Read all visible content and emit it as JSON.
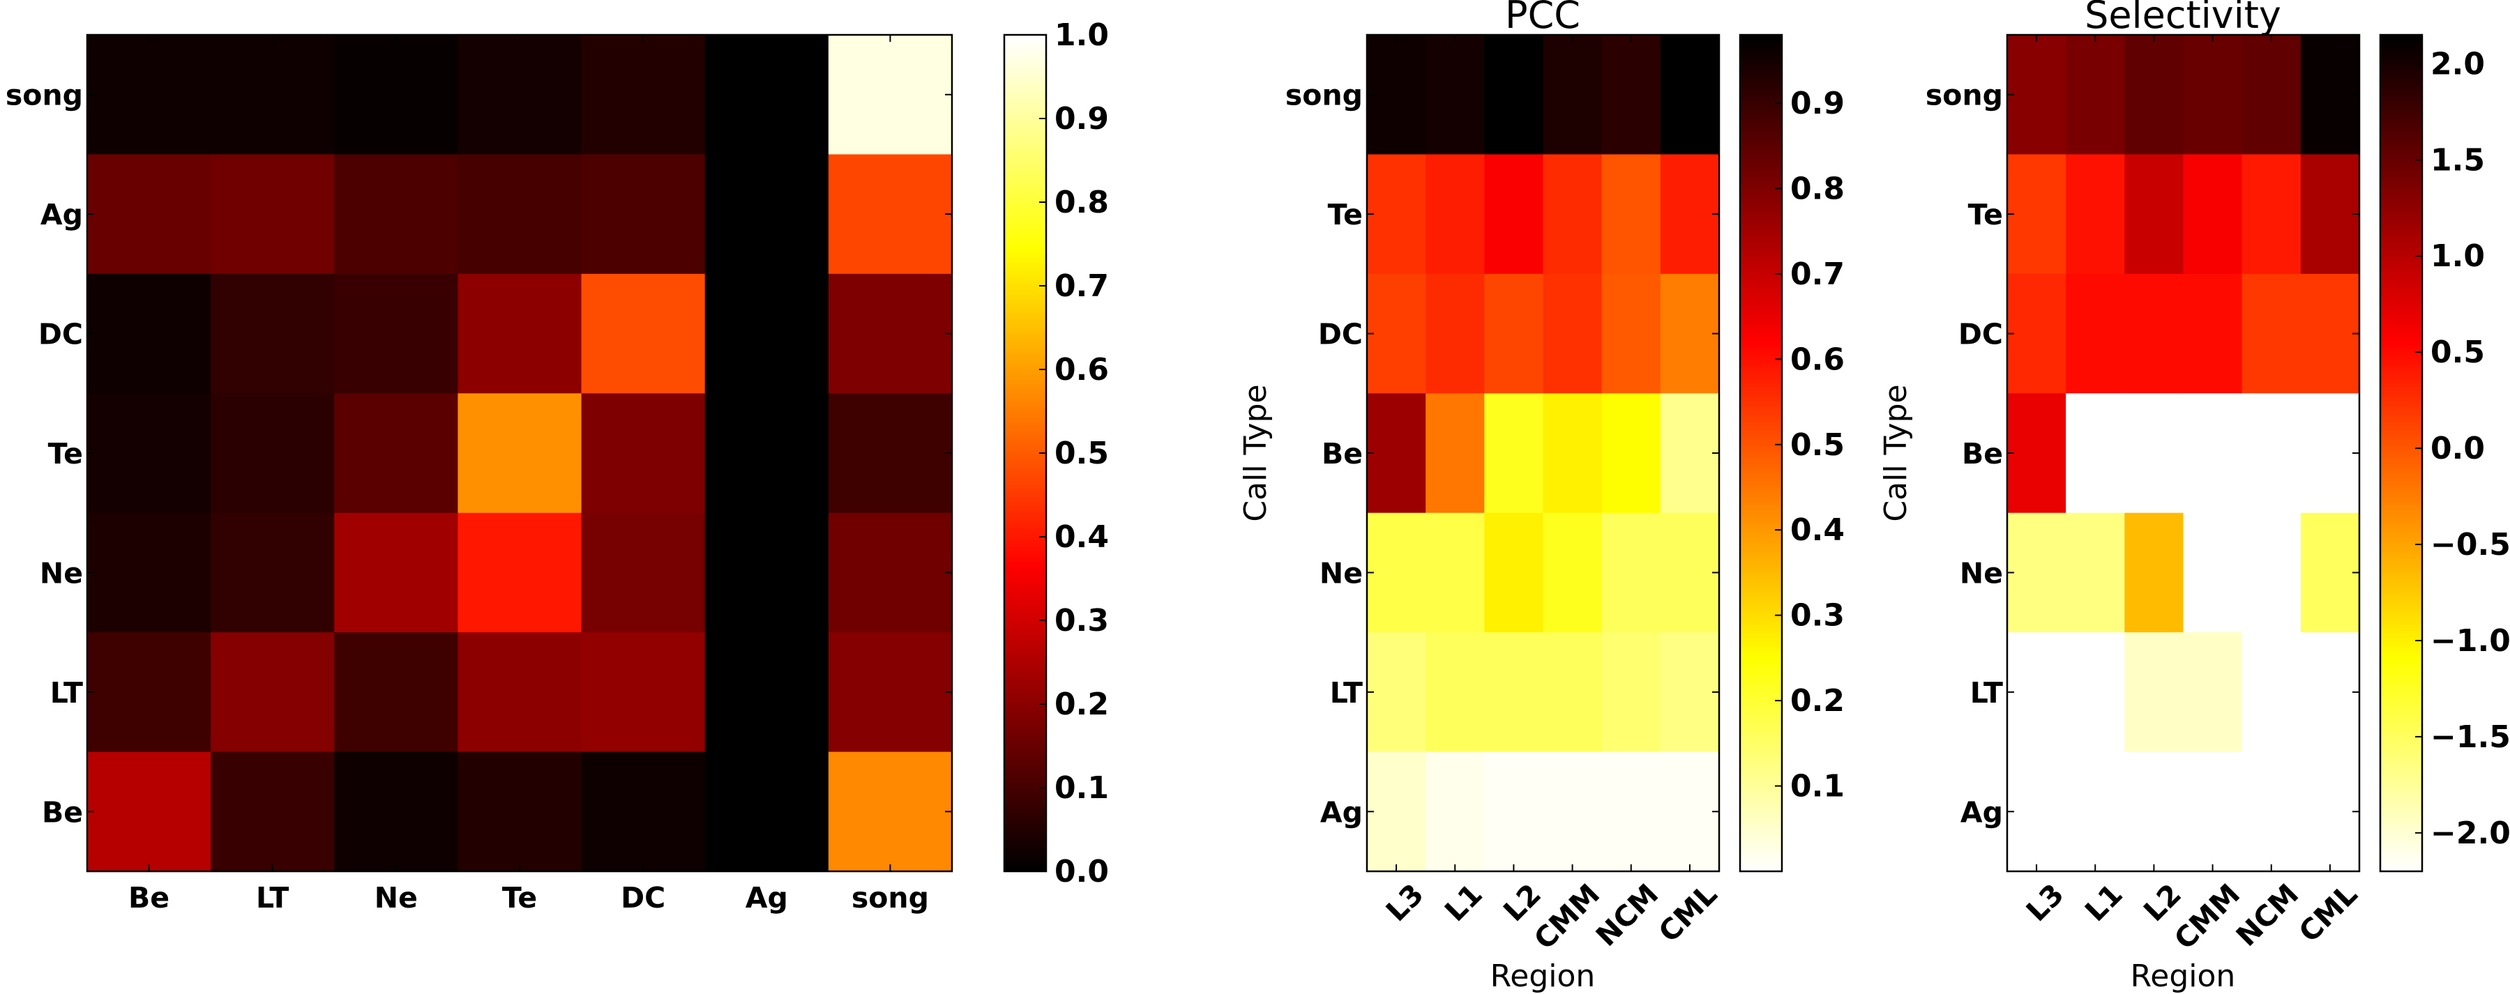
{
  "chart_data": [
    {
      "type": "heatmap",
      "title": "",
      "xlabel": "",
      "ylabel": "",
      "x_categories": [
        "Be",
        "LT",
        "Ne",
        "Te",
        "DC",
        "Ag",
        "song"
      ],
      "y_categories": [
        "song",
        "Ag",
        "DC",
        "Te",
        "Ne",
        "LT",
        "Be"
      ],
      "colormap": "hot",
      "clim": [
        0.0,
        1.0
      ],
      "colorbar_ticks": [
        "0.0",
        "0.1",
        "0.2",
        "0.3",
        "0.4",
        "0.5",
        "0.6",
        "0.7",
        "0.8",
        "0.9",
        "1.0"
      ],
      "values": [
        [
          0.02,
          0.02,
          0.01,
          0.03,
          0.05,
          0.0,
          0.97
        ],
        [
          0.15,
          0.16,
          0.11,
          0.1,
          0.11,
          0.0,
          0.47
        ],
        [
          0.02,
          0.07,
          0.08,
          0.2,
          0.48,
          0.0,
          0.18
        ],
        [
          0.03,
          0.06,
          0.13,
          0.58,
          0.18,
          0.0,
          0.09
        ],
        [
          0.04,
          0.07,
          0.23,
          0.4,
          0.17,
          0.0,
          0.16
        ],
        [
          0.09,
          0.19,
          0.09,
          0.2,
          0.21,
          0.0,
          0.19
        ],
        [
          0.26,
          0.08,
          0.02,
          0.05,
          0.02,
          0.0,
          0.57
        ]
      ]
    },
    {
      "type": "heatmap",
      "title": "PCC",
      "xlabel": "Region",
      "ylabel": "Call Type",
      "x_categories": [
        "L3",
        "L1",
        "L2",
        "CMM",
        "NCM",
        "CML"
      ],
      "y_categories": [
        "song",
        "Te",
        "DC",
        "Be",
        "Ne",
        "LT",
        "Ag"
      ],
      "colormap": "hot_r",
      "clim": [
        0.0,
        0.98
      ],
      "colorbar_ticks": [
        "0.1",
        "0.2",
        "0.3",
        "0.4",
        "0.5",
        "0.6",
        "0.7",
        "0.8",
        "0.9"
      ],
      "values": [
        [
          0.96,
          0.95,
          0.98,
          0.94,
          0.92,
          0.98
        ],
        [
          0.55,
          0.58,
          0.63,
          0.56,
          0.5,
          0.58
        ],
        [
          0.53,
          0.56,
          0.52,
          0.55,
          0.49,
          0.44
        ],
        [
          0.76,
          0.45,
          0.22,
          0.27,
          0.25,
          0.11
        ],
        [
          0.18,
          0.18,
          0.27,
          0.22,
          0.16,
          0.16
        ],
        [
          0.13,
          0.16,
          0.16,
          0.16,
          0.14,
          0.12
        ],
        [
          0.05,
          0.02,
          0.01,
          0.01,
          0.01,
          0.01
        ]
      ]
    },
    {
      "type": "heatmap",
      "title": "Selectivity",
      "xlabel": "Region",
      "ylabel": "Call Type",
      "x_categories": [
        "L3",
        "L1",
        "L2",
        "CMM",
        "NCM",
        "CML"
      ],
      "y_categories": [
        "song",
        "Te",
        "DC",
        "Be",
        "Ne",
        "LT",
        "Ag"
      ],
      "colormap": "hot_r",
      "clim": [
        -2.2,
        2.15
      ],
      "colorbar_ticks": [
        "−2.0",
        "−1.5",
        "−1.0",
        "−0.5",
        "0.0",
        "0.5",
        "1.0",
        "1.5",
        "2.0"
      ],
      "values": [
        [
          1.3,
          1.4,
          1.55,
          1.5,
          1.55,
          2.1
        ],
        [
          0.2,
          0.45,
          0.9,
          0.6,
          0.4,
          1.1
        ],
        [
          0.3,
          0.5,
          0.5,
          0.5,
          0.2,
          0.2
        ],
        [
          0.7,
          -2.2,
          -2.2,
          -2.2,
          -2.2,
          -2.2
        ],
        [
          -1.65,
          -1.65,
          -0.65,
          -2.2,
          -2.2,
          -1.5
        ],
        [
          -2.2,
          -2.2,
          -1.95,
          -1.95,
          -2.2,
          -2.2
        ],
        [
          -2.2,
          -2.2,
          -2.2,
          -2.2,
          -2.2,
          -2.2
        ]
      ]
    }
  ]
}
